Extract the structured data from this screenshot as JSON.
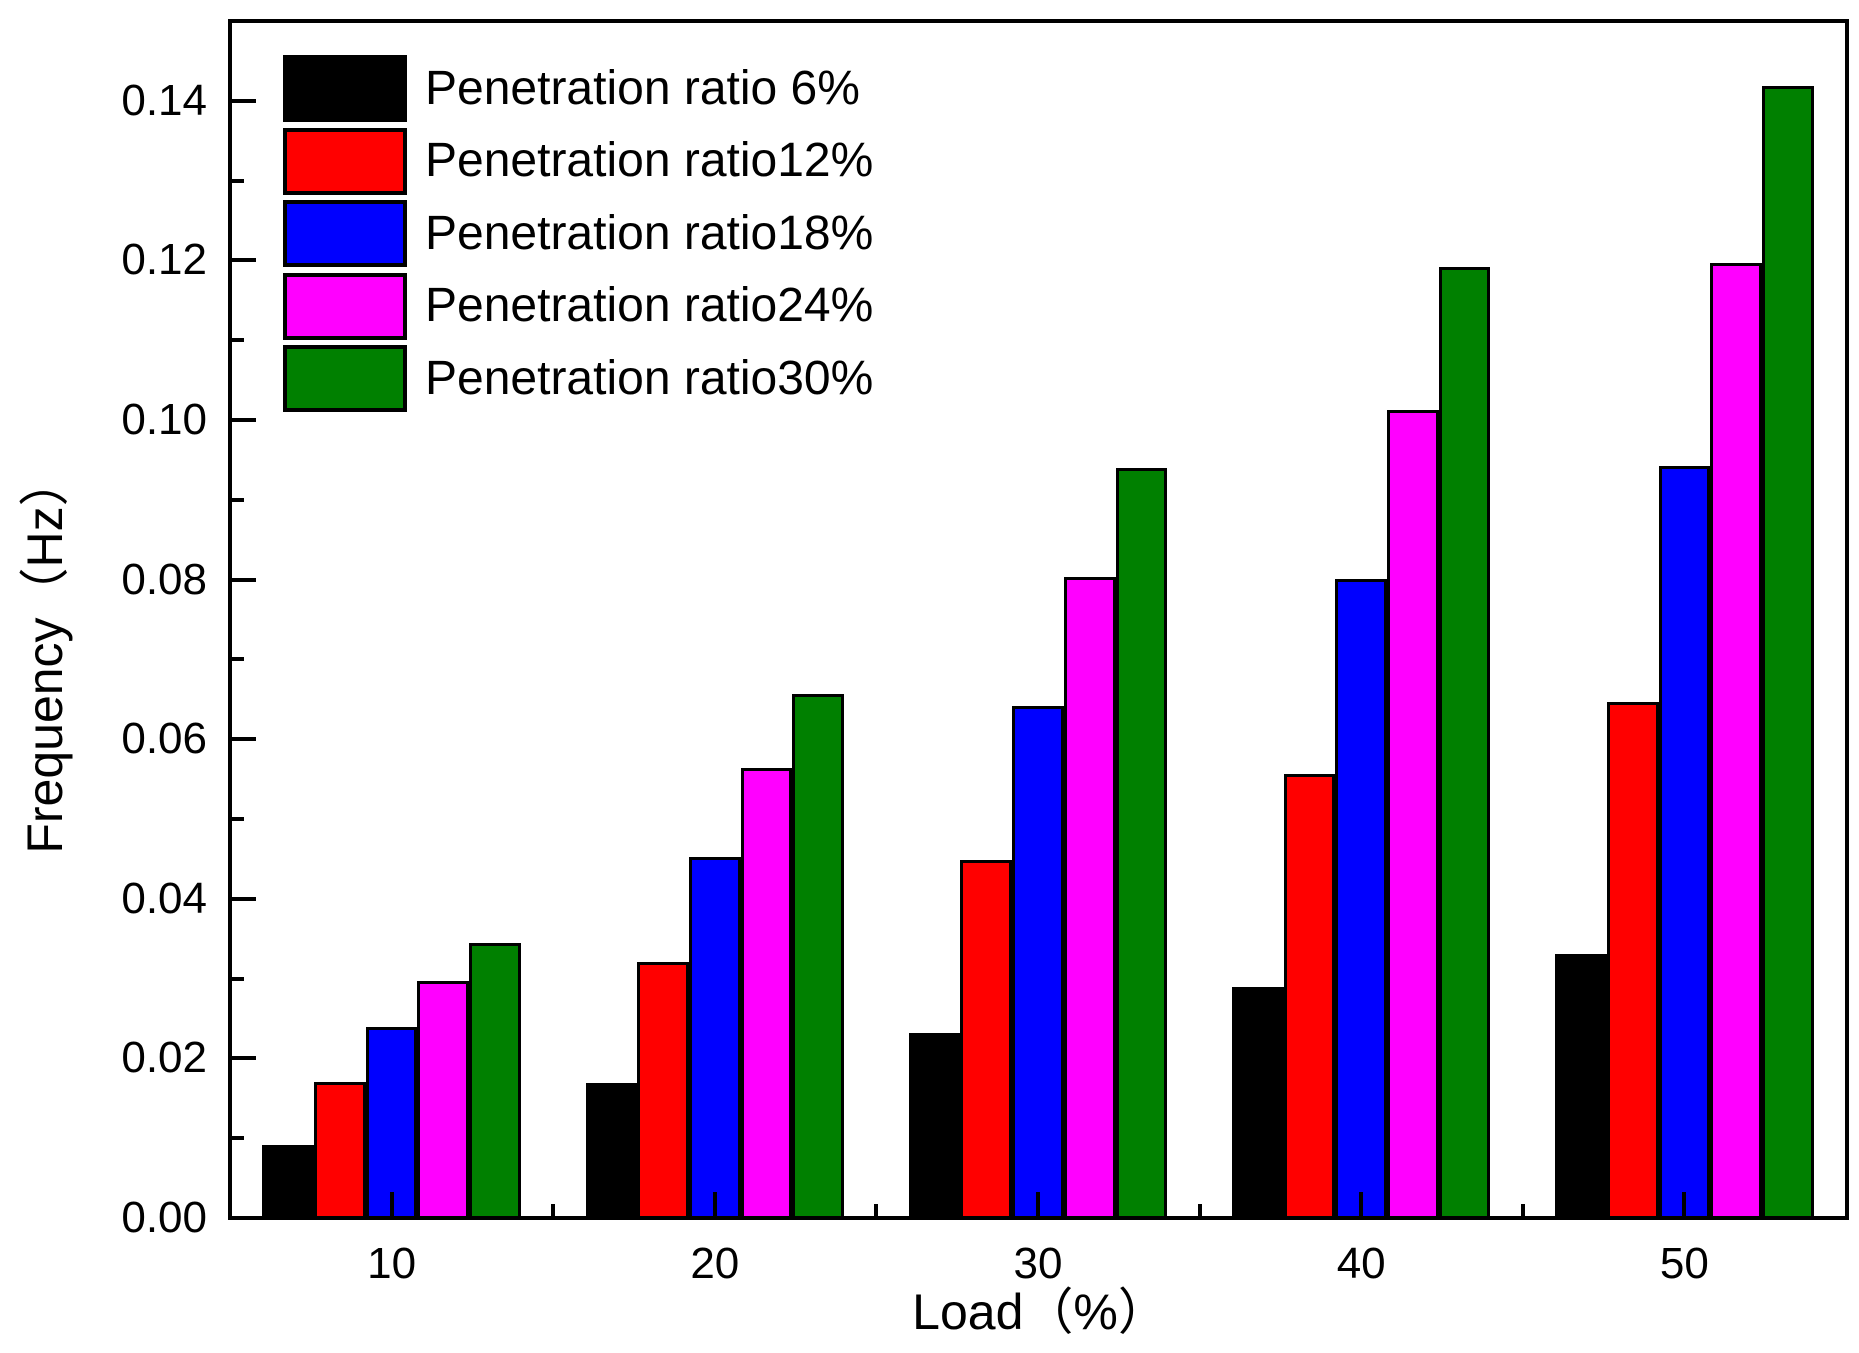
{
  "chart_data": {
    "type": "bar",
    "title": "",
    "xlabel": "Load（%）",
    "ylabel": "Frequency（Hz）",
    "categories": [
      10,
      20,
      30,
      40,
      50
    ],
    "series": [
      {
        "name": "Penetration ratio 6%",
        "color": "#000000",
        "values": [
          0.0091,
          0.0169,
          0.0232,
          0.0289,
          0.0331
        ]
      },
      {
        "name": "Penetration ratio12%",
        "color": "#FF0000",
        "values": [
          0.017,
          0.0321,
          0.0448,
          0.0557,
          0.0647
        ]
      },
      {
        "name": "Penetration ratio18%",
        "color": "#0000FF",
        "values": [
          0.0239,
          0.0452,
          0.0641,
          0.0801,
          0.0942
        ]
      },
      {
        "name": "Penetration ratio24%",
        "color": "#FF00FF",
        "values": [
          0.0297,
          0.0564,
          0.0803,
          0.1012,
          0.1197
        ]
      },
      {
        "name": "Penetration ratio30%",
        "color": "#008000",
        "values": [
          0.0344,
          0.0657,
          0.094,
          0.1192,
          0.1418
        ]
      }
    ],
    "x_axis": {
      "min": 5,
      "max": 55,
      "major_ticks": [
        10,
        20,
        30,
        40,
        50
      ],
      "minor_ticks": [
        15,
        25,
        35,
        45,
        55
      ],
      "tick_labels": [
        "10",
        "20",
        "30",
        "40",
        "50"
      ]
    },
    "y_axis": {
      "min": 0,
      "max": 0.15,
      "major_tick_step": 0.02,
      "minor_tick_step": 0.01,
      "tick_labels": [
        "0.00",
        "0.02",
        "0.04",
        "0.06",
        "0.08",
        "0.10",
        "0.12",
        "0.14"
      ]
    },
    "grid": false,
    "legend_position": "top-left",
    "bar_outline_color": "#000000",
    "background_color": "#FFFFFF"
  }
}
